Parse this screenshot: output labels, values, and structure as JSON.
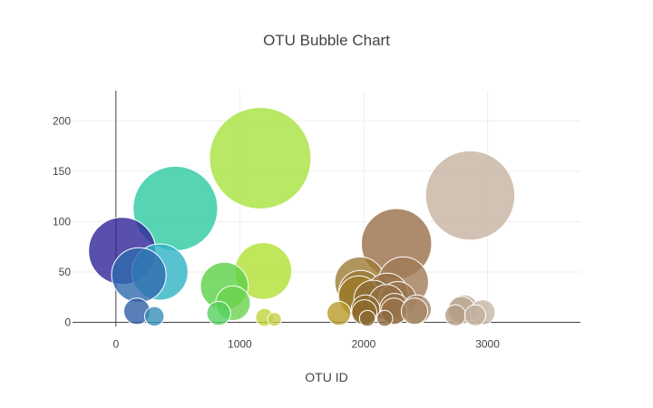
{
  "chart_data": {
    "type": "scatter",
    "variant": "bubble",
    "title": "OTU Bubble Chart",
    "xlabel": "OTU ID",
    "ylabel": "",
    "xlim": [
      -350,
      3750
    ],
    "ylim": [
      -4,
      230
    ],
    "x_ticks": [
      0,
      1000,
      2000,
      3000
    ],
    "y_ticks": [
      0,
      50,
      100,
      150,
      200
    ],
    "grid": true,
    "legend": "none",
    "points": [
      {
        "x": 50,
        "y": 71,
        "color": "#2e2497"
      },
      {
        "x": 170,
        "y": 11,
        "color": "#2f5fa8"
      },
      {
        "x": 185,
        "y": 47,
        "color": "#2f6aaf"
      },
      {
        "x": 310,
        "y": 6,
        "color": "#3a8fb8"
      },
      {
        "x": 355,
        "y": 50,
        "color": "#2fb3c6"
      },
      {
        "x": 480,
        "y": 113,
        "color": "#2cc9a1"
      },
      {
        "x": 830,
        "y": 9,
        "color": "#55d060"
      },
      {
        "x": 875,
        "y": 36,
        "color": "#5bd145"
      },
      {
        "x": 945,
        "y": 19,
        "color": "#6ad24e"
      },
      {
        "x": 1165,
        "y": 163,
        "color": "#a8e23d"
      },
      {
        "x": 1190,
        "y": 51,
        "color": "#b0e033"
      },
      {
        "x": 1200,
        "y": 5,
        "color": "#c0d43a"
      },
      {
        "x": 1280,
        "y": 3,
        "color": "#c8d04a"
      },
      {
        "x": 1800,
        "y": 9,
        "color": "#b89a2a"
      },
      {
        "x": 1960,
        "y": 26,
        "color": "#9e7a2b"
      },
      {
        "x": 1970,
        "y": 40,
        "color": "#9c7b35"
      },
      {
        "x": 1975,
        "y": 30,
        "color": "#9a7a33"
      },
      {
        "x": 2005,
        "y": 10,
        "color": "#8e6a2c"
      },
      {
        "x": 2015,
        "y": 13,
        "color": "#8d6a30"
      },
      {
        "x": 2030,
        "y": 4,
        "color": "#8a6a35"
      },
      {
        "x": 2075,
        "y": 23,
        "color": "#8f6b3a"
      },
      {
        "x": 2170,
        "y": 4,
        "color": "#8c6a3e"
      },
      {
        "x": 2185,
        "y": 20,
        "color": "#946f43"
      },
      {
        "x": 2190,
        "y": 28,
        "color": "#966f45"
      },
      {
        "x": 2245,
        "y": 11,
        "color": "#97714a"
      },
      {
        "x": 2250,
        "y": 14,
        "color": "#997349"
      },
      {
        "x": 2265,
        "y": 78,
        "color": "#9a6e48"
      },
      {
        "x": 2275,
        "y": 22,
        "color": "#9b7550"
      },
      {
        "x": 2320,
        "y": 40,
        "color": "#a07a55"
      },
      {
        "x": 2410,
        "y": 11,
        "color": "#a58463"
      },
      {
        "x": 2430,
        "y": 13,
        "color": "#a8866a"
      },
      {
        "x": 2740,
        "y": 7,
        "color": "#b59e86"
      },
      {
        "x": 2790,
        "y": 12,
        "color": "#bba892"
      },
      {
        "x": 2810,
        "y": 13,
        "color": "#beab97"
      },
      {
        "x": 2860,
        "y": 126,
        "color": "#c7b3a0"
      },
      {
        "x": 2900,
        "y": 7,
        "color": "#c2af9c"
      },
      {
        "x": 2960,
        "y": 10,
        "color": "#c6b6a6"
      }
    ]
  },
  "bubble_sizes": [
    71,
    11,
    47,
    6,
    50,
    113,
    9,
    36,
    19,
    163,
    51,
    5,
    3,
    9,
    26,
    40,
    30,
    10,
    13,
    4,
    23,
    4,
    20,
    28,
    11,
    14,
    78,
    22,
    40,
    11,
    13,
    7,
    12,
    13,
    126,
    7,
    10
  ]
}
